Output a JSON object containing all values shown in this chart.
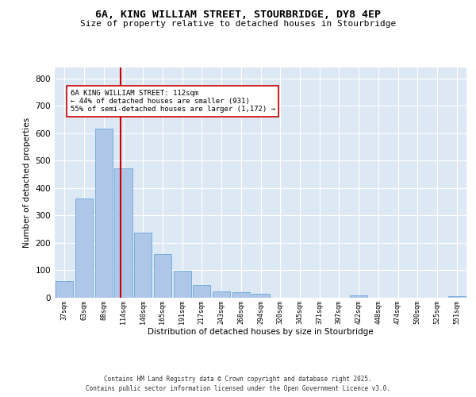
{
  "title_line1": "6A, KING WILLIAM STREET, STOURBRIDGE, DY8 4EP",
  "title_line2": "Size of property relative to detached houses in Stourbridge",
  "xlabel": "Distribution of detached houses by size in Stourbridge",
  "ylabel": "Number of detached properties",
  "categories": [
    "37sqm",
    "63sqm",
    "88sqm",
    "114sqm",
    "140sqm",
    "165sqm",
    "191sqm",
    "217sqm",
    "243sqm",
    "268sqm",
    "294sqm",
    "320sqm",
    "345sqm",
    "371sqm",
    "397sqm",
    "422sqm",
    "448sqm",
    "474sqm",
    "500sqm",
    "525sqm",
    "551sqm"
  ],
  "values": [
    60,
    362,
    617,
    472,
    237,
    160,
    99,
    47,
    22,
    20,
    15,
    0,
    0,
    0,
    0,
    10,
    0,
    0,
    0,
    0,
    5
  ],
  "bar_color": "#aec6e8",
  "bar_edge_color": "#5a9fd4",
  "vline_color": "#cc0000",
  "vline_x_index": 2.85,
  "annotation_text": "6A KING WILLIAM STREET: 112sqm\n← 44% of detached houses are smaller (931)\n55% of semi-detached houses are larger (1,172) →",
  "annotation_box_color": "#ffffff",
  "annotation_box_edge": "#cc0000",
  "ylim": [
    0,
    840
  ],
  "yticks": [
    0,
    100,
    200,
    300,
    400,
    500,
    600,
    700,
    800
  ],
  "background_color": "#dde8f5",
  "grid_color": "#ffffff",
  "footer_line1": "Contains HM Land Registry data © Crown copyright and database right 2025.",
  "footer_line2": "Contains public sector information licensed under the Open Government Licence v3.0."
}
